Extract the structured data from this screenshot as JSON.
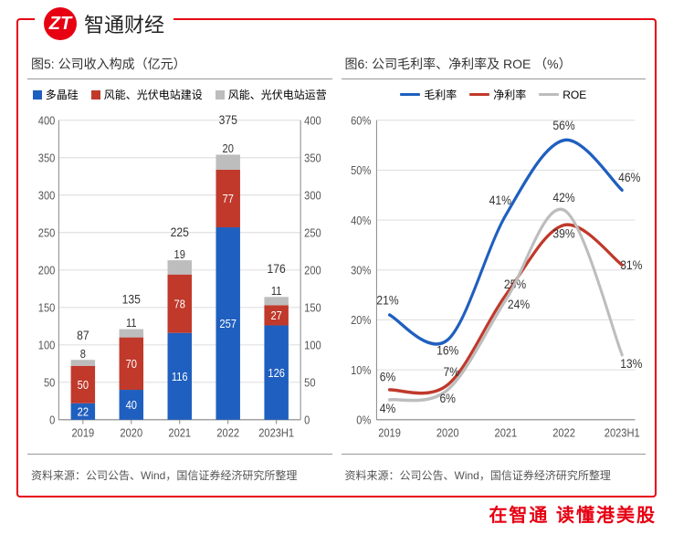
{
  "brand": "智通财经",
  "footer": "在智通  读懂港美股",
  "chart_left": {
    "title": "图5: 公司收入构成（亿元）",
    "source": "资料来源：公司公告、Wind，国信证券经济研究所整理",
    "type": "stacked-bar-dual-axis",
    "categories": [
      "2019",
      "2020",
      "2021",
      "2022",
      "2023H1"
    ],
    "series": [
      {
        "name": "多晶硅",
        "color": "#1f5fbf",
        "values": [
          22,
          40,
          116,
          257,
          126
        ]
      },
      {
        "name": "风能、光伏电站建设",
        "color": "#c0392b",
        "values": [
          50,
          70,
          78,
          77,
          27
        ]
      },
      {
        "name": "风能、光伏电站运营",
        "color": "#bdbdbd",
        "values": [
          8,
          11,
          19,
          20,
          11
        ]
      }
    ],
    "totals": [
      87,
      135,
      225,
      375,
      176
    ],
    "ylim": [
      0,
      400
    ],
    "ytick_step": 50,
    "ylim_right": [
      0,
      400
    ],
    "ytick_step_right": 50,
    "grid_color": "#e0e0e0",
    "axis_color": "#888888",
    "bar_width": 0.5
  },
  "chart_right": {
    "title": "图6: 公司毛利率、净利率及 ROE （%）",
    "source": "资料来源：公司公告、Wind，国信证券经济研究所整理",
    "type": "line",
    "categories": [
      "2019",
      "2020",
      "2021",
      "2022",
      "2023H1"
    ],
    "series": [
      {
        "name": "毛利率",
        "color": "#1f5fbf",
        "values": [
          21,
          16,
          41,
          56,
          46
        ]
      },
      {
        "name": "净利率",
        "color": "#c0392b",
        "values": [
          6,
          7,
          25,
          39,
          31
        ]
      },
      {
        "name": "ROE",
        "color": "#bdbdbd",
        "values": [
          4,
          6,
          24,
          42,
          13
        ]
      }
    ],
    "ylim": [
      0,
      60
    ],
    "ytick_step": 10,
    "grid_color": "#e0e0e0",
    "axis_color": "#888888",
    "line_width": 3
  }
}
